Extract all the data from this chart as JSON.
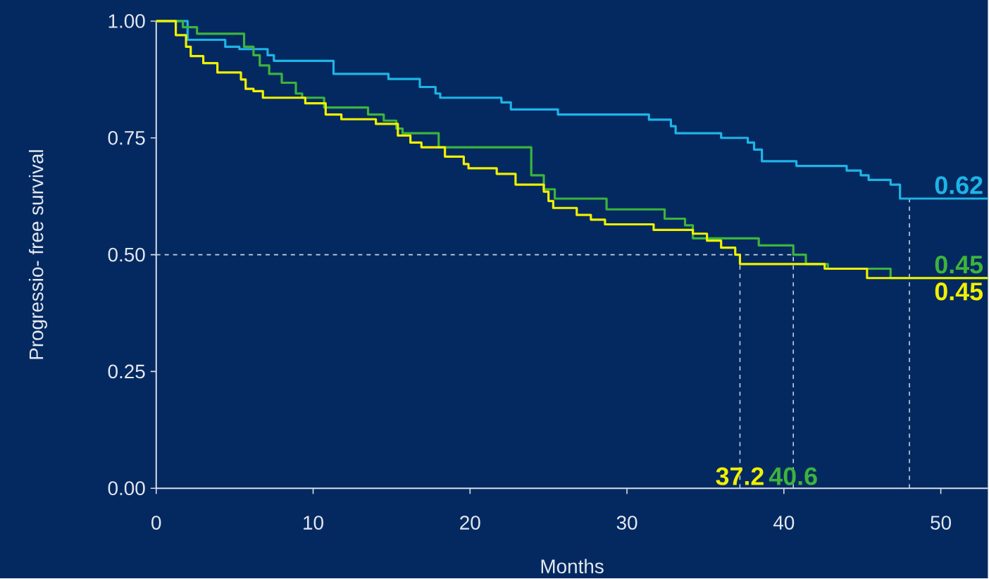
{
  "chart_data": {
    "type": "step",
    "xlabel": "Months",
    "ylabel": "Progressio- free survival",
    "xlim": [
      0,
      53
    ],
    "ylim": [
      0,
      1
    ],
    "xticks": [
      0,
      10,
      20,
      30,
      40,
      50
    ],
    "yticks": [
      {
        "value": 0,
        "label": "0.00"
      },
      {
        "value": 0.25,
        "label": "0.25"
      },
      {
        "value": 0.5,
        "label": "0.50"
      },
      {
        "value": 0.75,
        "label": "0.75"
      },
      {
        "value": 1,
        "label": "1.00"
      }
    ],
    "series": [
      {
        "color": "#1eb4e6",
        "x": [
          0,
          2.0,
          4.4,
          5.3,
          7.1,
          7.5,
          11.3,
          14.8,
          16.8,
          17.8,
          18.1,
          22.0,
          22.6,
          25.6,
          31.4,
          32.8,
          33.1,
          36.0,
          37.7,
          38.1,
          38.6,
          40.8,
          44.0,
          44.9,
          45.4,
          46.8,
          47.4,
          53
        ],
        "values": [
          1.0,
          0.96,
          0.945,
          0.94,
          0.927,
          0.915,
          0.887,
          0.876,
          0.859,
          0.845,
          0.836,
          0.826,
          0.811,
          0.8,
          0.789,
          0.775,
          0.76,
          0.75,
          0.74,
          0.725,
          0.7,
          0.69,
          0.68,
          0.67,
          0.66,
          0.65,
          0.62,
          0.62
        ],
        "value_labels": [
          null,
          null,
          null,
          null,
          null,
          null,
          null,
          null,
          null,
          null,
          null,
          null,
          null,
          null,
          null,
          null,
          null,
          null,
          null,
          null,
          null,
          null,
          null,
          null,
          null,
          null,
          null,
          "0.62"
        ]
      },
      {
        "color": "#3cb43c",
        "x": [
          0,
          1.7,
          2.6,
          5.6,
          6.2,
          6.6,
          7.2,
          8.0,
          8.9,
          9.3,
          10.7,
          13.5,
          14.5,
          15.3,
          15.7,
          18.0,
          23.9,
          24.7,
          25.4,
          28.7,
          32.4,
          33.7,
          34.2,
          38.4,
          40.6,
          41.4,
          42.8,
          46.8,
          53
        ],
        "values": [
          1.0,
          0.987,
          0.973,
          0.945,
          0.927,
          0.905,
          0.887,
          0.868,
          0.845,
          0.836,
          0.815,
          0.8,
          0.787,
          0.77,
          0.76,
          0.73,
          0.67,
          0.64,
          0.62,
          0.597,
          0.577,
          0.563,
          0.535,
          0.52,
          0.5,
          0.48,
          0.47,
          0.45,
          0.45
        ],
        "value_labels": [
          null,
          null,
          null,
          null,
          null,
          null,
          null,
          null,
          null,
          null,
          null,
          null,
          null,
          null,
          null,
          null,
          null,
          null,
          null,
          null,
          null,
          null,
          null,
          null,
          null,
          null,
          null,
          null,
          "0.45"
        ]
      },
      {
        "color": "#f0f000",
        "x": [
          0,
          1.25,
          1.9,
          2.2,
          3.0,
          3.9,
          5.4,
          5.7,
          6.2,
          6.8,
          9.5,
          10.8,
          11.8,
          14.0,
          15.4,
          16.2,
          16.9,
          18.4,
          19.6,
          19.9,
          21.7,
          22.9,
          24.7,
          25.0,
          25.3,
          26.8,
          27.7,
          28.6,
          31.7,
          34.2,
          35.1,
          36.0,
          36.9,
          37.2,
          42.6,
          45.3,
          53
        ],
        "values": [
          1.0,
          0.97,
          0.945,
          0.925,
          0.91,
          0.89,
          0.875,
          0.855,
          0.85,
          0.836,
          0.824,
          0.8,
          0.79,
          0.78,
          0.755,
          0.74,
          0.73,
          0.71,
          0.694,
          0.685,
          0.673,
          0.65,
          0.635,
          0.615,
          0.6,
          0.585,
          0.575,
          0.565,
          0.553,
          0.545,
          0.53,
          0.515,
          0.5,
          0.48,
          0.47,
          0.45,
          0.45
        ],
        "value_labels": [
          null,
          null,
          null,
          null,
          null,
          null,
          null,
          null,
          null,
          null,
          null,
          null,
          null,
          null,
          null,
          null,
          null,
          null,
          null,
          null,
          null,
          null,
          null,
          null,
          null,
          null,
          null,
          null,
          null,
          null,
          null,
          null,
          null,
          null,
          null,
          null,
          "0.45"
        ]
      }
    ],
    "ref_lines": [
      {
        "axis": "y",
        "value": 0.5
      },
      {
        "axis": "x",
        "value": 37.2,
        "label": "37.2"
      },
      {
        "axis": "x",
        "value": 40.6,
        "label": "40.6"
      },
      {
        "axis": "x",
        "value": 48
      }
    ]
  }
}
